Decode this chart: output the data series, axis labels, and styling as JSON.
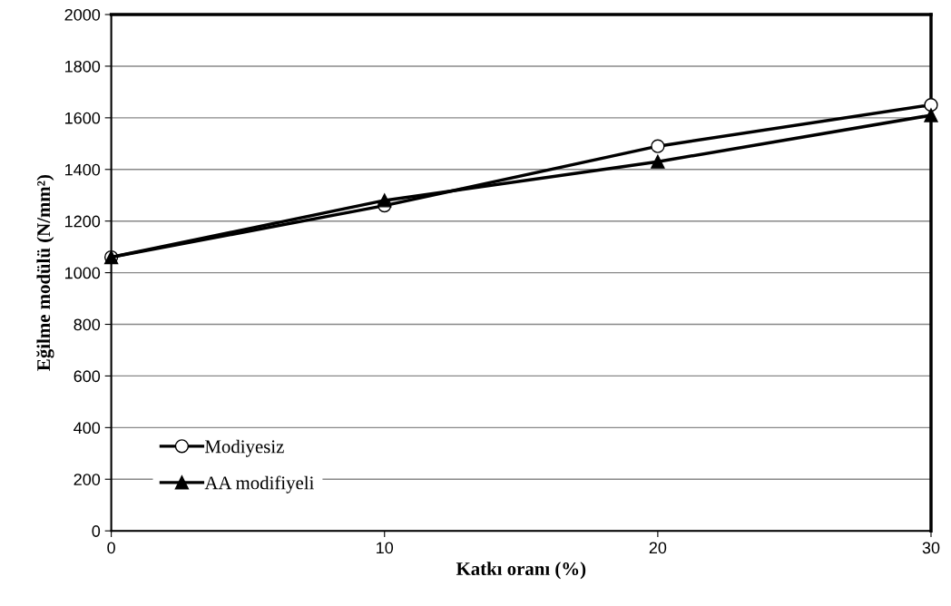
{
  "chart_data": {
    "type": "line",
    "xlabel": "Katkı oranı (%)",
    "ylabel": "Eğilme modülü (N/mm²)",
    "x": [
      0,
      10,
      20,
      30
    ],
    "series": [
      {
        "name": "Modiyesiz",
        "color": "#000000",
        "marker": "circle",
        "values": [
          1060,
          1260,
          1490,
          1650
        ]
      },
      {
        "name": "AA modifiyeli",
        "color": "#000000",
        "marker": "triangle",
        "values": [
          1060,
          1280,
          1430,
          1610
        ]
      }
    ],
    "xlim": [
      0,
      30
    ],
    "xticks": [
      0,
      10,
      20,
      30
    ],
    "ylim": [
      0,
      2000
    ],
    "yticks": [
      0,
      200,
      400,
      600,
      800,
      1000,
      1200,
      1400,
      1600,
      1800,
      2000
    ],
    "grid": "y",
    "legend": "bottom left",
    "line_style": "solid"
  }
}
